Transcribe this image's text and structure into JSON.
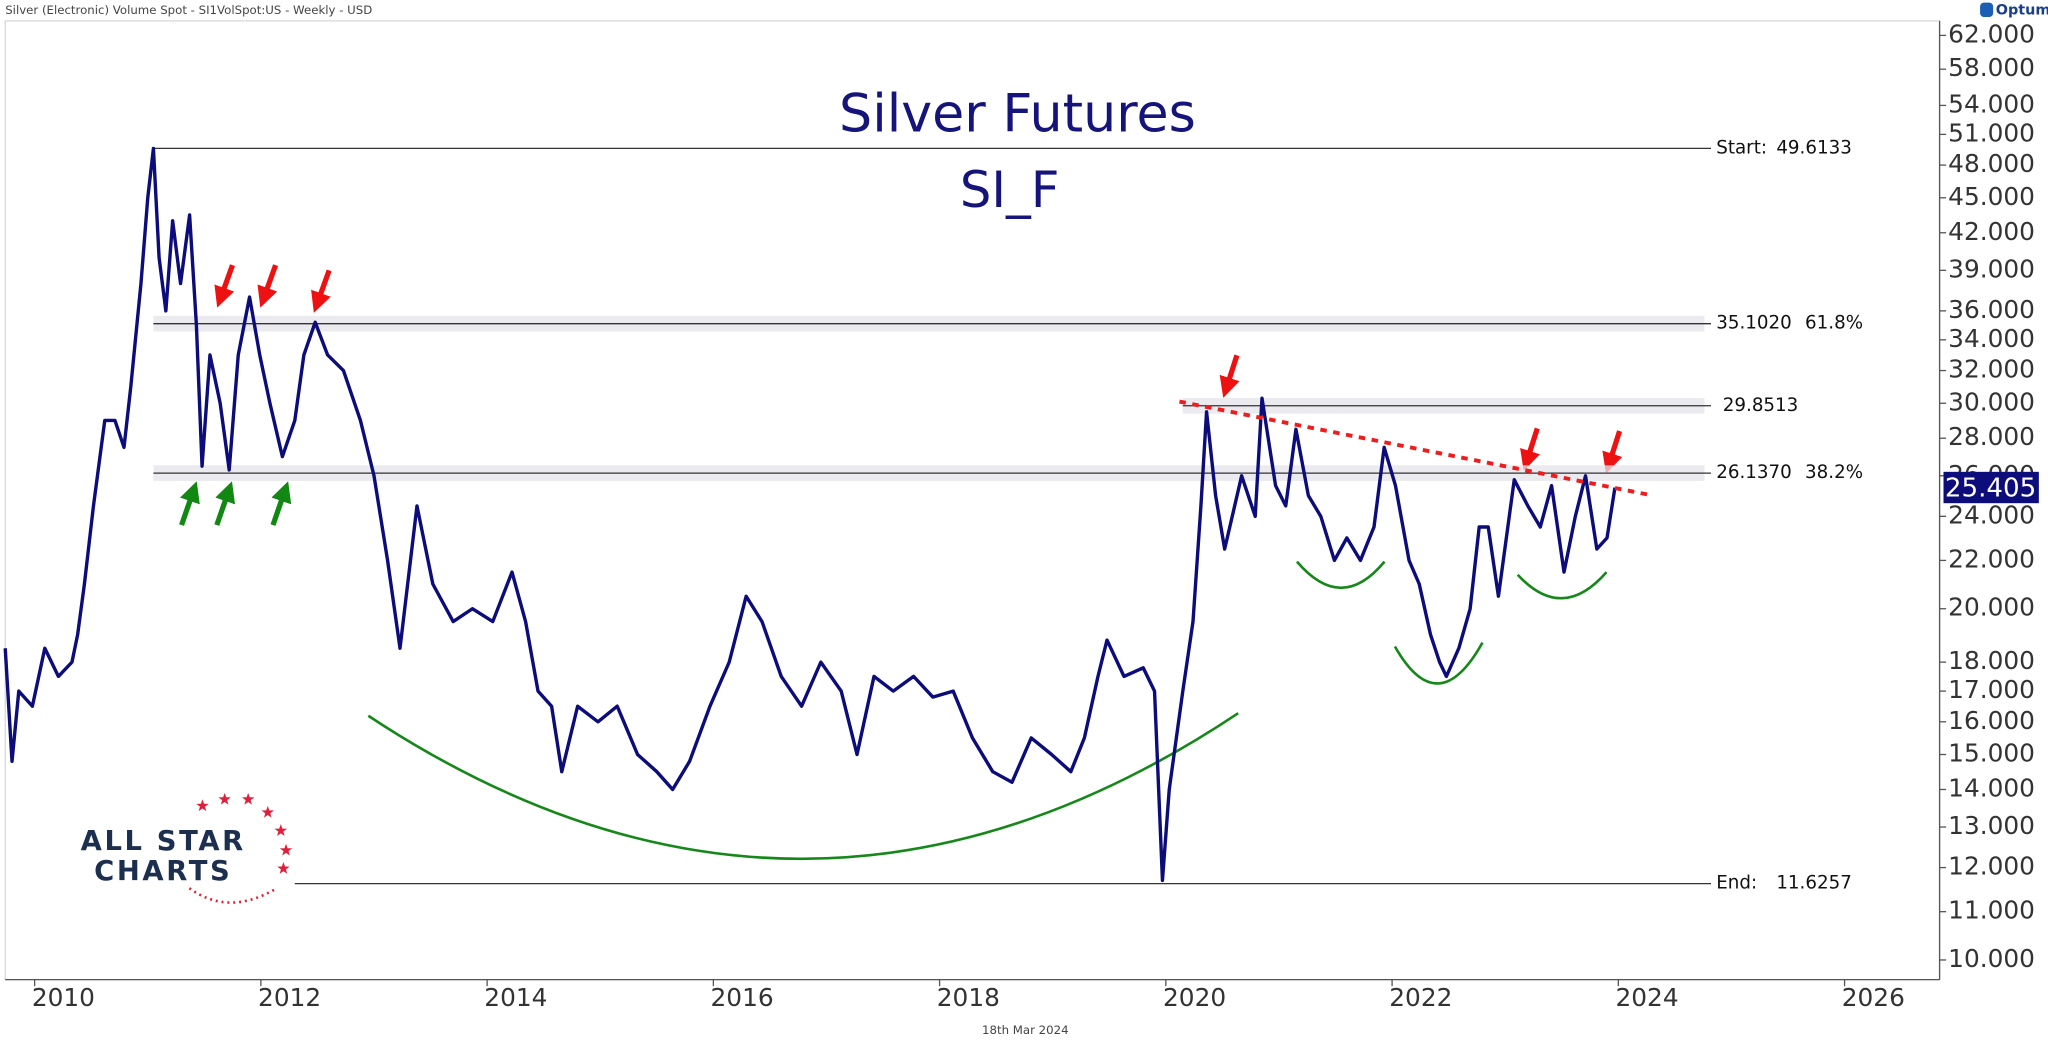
{
  "header": "Silver (Electronic) Volume Spot - SI1VolSpot:US - Weekly - USD",
  "brand": "Optuma",
  "footer_date": "18th Mar 2024",
  "logo": {
    "line1": "ALL STAR",
    "line2": "CHARTS"
  },
  "chart_data": {
    "type": "line",
    "title": "Silver Futures",
    "subtitle": "SI_F",
    "color": "#0c0c7a",
    "log_y": true,
    "grid": false,
    "x": [
      2009.74,
      2009.8,
      2009.86,
      2009.98,
      2010.09,
      2010.21,
      2010.33,
      2010.38,
      2010.44,
      2010.52,
      2010.62,
      2010.71,
      2010.79,
      2010.85,
      2010.94,
      2011.0,
      2011.05,
      2011.1,
      2011.16,
      2011.22,
      2011.29,
      2011.37,
      2011.43,
      2011.48,
      2011.55,
      2011.64,
      2011.72,
      2011.8,
      2011.9,
      2011.99,
      2012.08,
      2012.19,
      2012.3,
      2012.38,
      2012.48,
      2012.59,
      2012.73,
      2012.88,
      2013.0,
      2013.12,
      2013.23,
      2013.38,
      2013.52,
      2013.7,
      2013.87,
      2014.05,
      2014.22,
      2014.34,
      2014.45,
      2014.57,
      2014.66,
      2014.8,
      2014.98,
      2015.15,
      2015.33,
      2015.5,
      2015.64,
      2015.79,
      2015.97,
      2016.14,
      2016.29,
      2016.43,
      2016.6,
      2016.78,
      2016.95,
      2017.13,
      2017.27,
      2017.42,
      2017.59,
      2017.77,
      2017.94,
      2018.12,
      2018.29,
      2018.47,
      2018.64,
      2018.81,
      2018.99,
      2019.16,
      2019.28,
      2019.4,
      2019.48,
      2019.63,
      2019.8,
      2019.9,
      2019.97,
      2020.03,
      2020.15,
      2020.24,
      2020.31,
      2020.36,
      2020.44,
      2020.52,
      2020.67,
      2020.79,
      2020.85,
      2020.97,
      2021.06,
      2021.15,
      2021.26,
      2021.37,
      2021.49,
      2021.6,
      2021.72,
      2021.84,
      2021.93,
      2022.03,
      2022.15,
      2022.24,
      2022.34,
      2022.42,
      2022.48,
      2022.59,
      2022.69,
      2022.77,
      2022.85,
      2022.94,
      2023.08,
      2023.2,
      2023.31,
      2023.41,
      2023.52,
      2023.62,
      2023.71,
      2023.81,
      2023.9,
      2023.97
    ],
    "values": [
      18.5,
      14.8,
      17,
      16.5,
      18.5,
      17.5,
      18,
      19,
      21,
      24.5,
      29,
      29,
      27.5,
      31,
      38,
      45,
      49.6,
      40,
      36,
      43,
      38,
      43.5,
      35,
      26.5,
      33,
      30,
      26.3,
      33,
      37,
      33,
      30,
      27,
      29,
      33,
      35.2,
      33,
      32,
      29,
      26,
      22,
      18.5,
      24.5,
      21,
      19.5,
      20,
      19.5,
      21.5,
      19.5,
      17,
      16.5,
      14.5,
      16.5,
      16,
      16.5,
      15,
      14.5,
      14,
      14.8,
      16.5,
      18,
      20.5,
      19.5,
      17.5,
      16.5,
      18,
      17,
      15,
      17.5,
      17,
      17.5,
      16.8,
      17,
      15.5,
      14.5,
      14.2,
      15.5,
      15,
      14.5,
      15.5,
      17.5,
      18.8,
      17.5,
      17.8,
      17,
      11.7,
      14,
      17,
      19.5,
      24.5,
      29.5,
      25,
      22.5,
      26,
      24,
      30.3,
      25.5,
      24.5,
      28.5,
      25,
      24,
      22,
      23,
      22,
      23.5,
      27.5,
      25.5,
      22,
      21,
      19,
      18,
      17.5,
      18.5,
      20,
      23.5,
      23.5,
      20.5,
      25.8,
      24.5,
      23.5,
      25.5,
      21.5,
      24,
      26,
      22.5,
      23,
      25.4
    ],
    "last_price": 25.405,
    "xlim": [
      2009.74,
      2026.84
    ],
    "xticks": [
      2010,
      2012,
      2014,
      2016,
      2018,
      2020,
      2022,
      2024,
      2026
    ],
    "ylim": [
      9.62,
      63.8
    ],
    "yticks": [
      {
        "value": 10,
        "label": "10.000"
      },
      {
        "value": 11,
        "label": "11.000"
      },
      {
        "value": 12,
        "label": "12.000"
      },
      {
        "value": 13,
        "label": "13.000"
      },
      {
        "value": 14,
        "label": "14.000"
      },
      {
        "value": 15,
        "label": "15.000"
      },
      {
        "value": 16,
        "label": "16.000"
      },
      {
        "value": 17,
        "label": "17.000"
      },
      {
        "value": 18,
        "label": "18.000"
      },
      {
        "value": 20,
        "label": "20.000"
      },
      {
        "value": 22,
        "label": "22.000"
      },
      {
        "value": 24,
        "label": "24.000"
      },
      {
        "value": 26,
        "label": "26.000"
      },
      {
        "value": 28,
        "label": "28.000"
      },
      {
        "value": 30,
        "label": "30.000"
      },
      {
        "value": 32,
        "label": "32.000"
      },
      {
        "value": 34,
        "label": "34.000"
      },
      {
        "value": 36,
        "label": "36.000"
      },
      {
        "value": 39,
        "label": "39.000"
      },
      {
        "value": 42,
        "label": "42.000"
      },
      {
        "value": 45,
        "label": "45.000"
      },
      {
        "value": 48,
        "label": "48.000"
      },
      {
        "value": 51,
        "label": "51.000"
      },
      {
        "value": 54,
        "label": "54.000"
      },
      {
        "value": 58,
        "label": "58.000"
      },
      {
        "value": 62,
        "label": "62.000"
      }
    ],
    "levels": [
      {
        "name": "Start:",
        "value": 49.6133,
        "x_start": 2011.05
      },
      {
        "value": 35.102,
        "value_label": "35.1020",
        "percent": "61.8%",
        "x_start": 2011.05,
        "band": true
      },
      {
        "value": 29.8513,
        "x_start": 2020.15,
        "band": true
      },
      {
        "value": 26.137,
        "value_label": "26.1370",
        "percent": "38.2%",
        "x_start": 2011.05,
        "band": true
      },
      {
        "name": "End:",
        "value": 11.6257,
        "x_start": 2012.3
      }
    ],
    "trendline": {
      "x": [
        2020.12,
        2024.31
      ],
      "values": [
        30.1,
        25.0
      ],
      "color": "#ee1c1c"
    }
  }
}
